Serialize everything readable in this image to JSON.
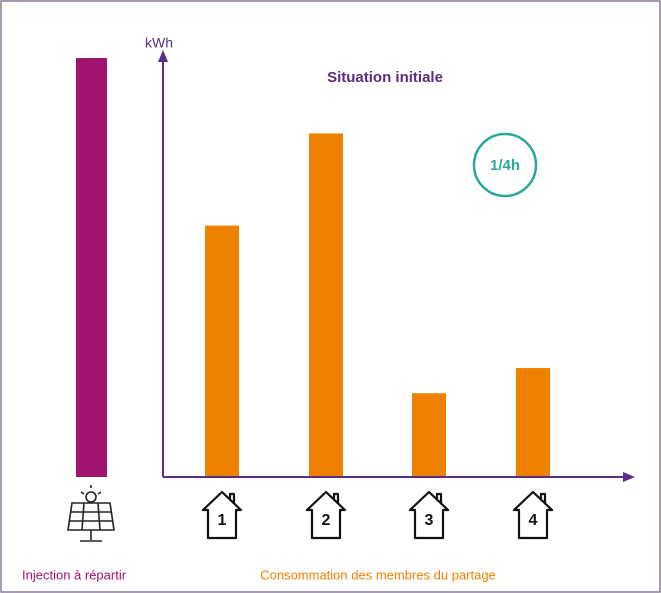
{
  "chart_data": {
    "type": "bar",
    "y_label": "kWh",
    "title": "Situation initiale",
    "badge": "1/4h",
    "categories": [
      "1",
      "2",
      "3",
      "4"
    ],
    "series": [
      {
        "name": "Consommation des membres du partage",
        "color": "#ee8100",
        "values": [
          60,
          82,
          20,
          26
        ]
      }
    ],
    "injection": {
      "name": "Injection à répartir",
      "value": 100,
      "color": "#a0136f"
    },
    "ylim": [
      0,
      100
    ],
    "axis_color": "#5b2c83",
    "badge_color": "#2aa89a"
  }
}
